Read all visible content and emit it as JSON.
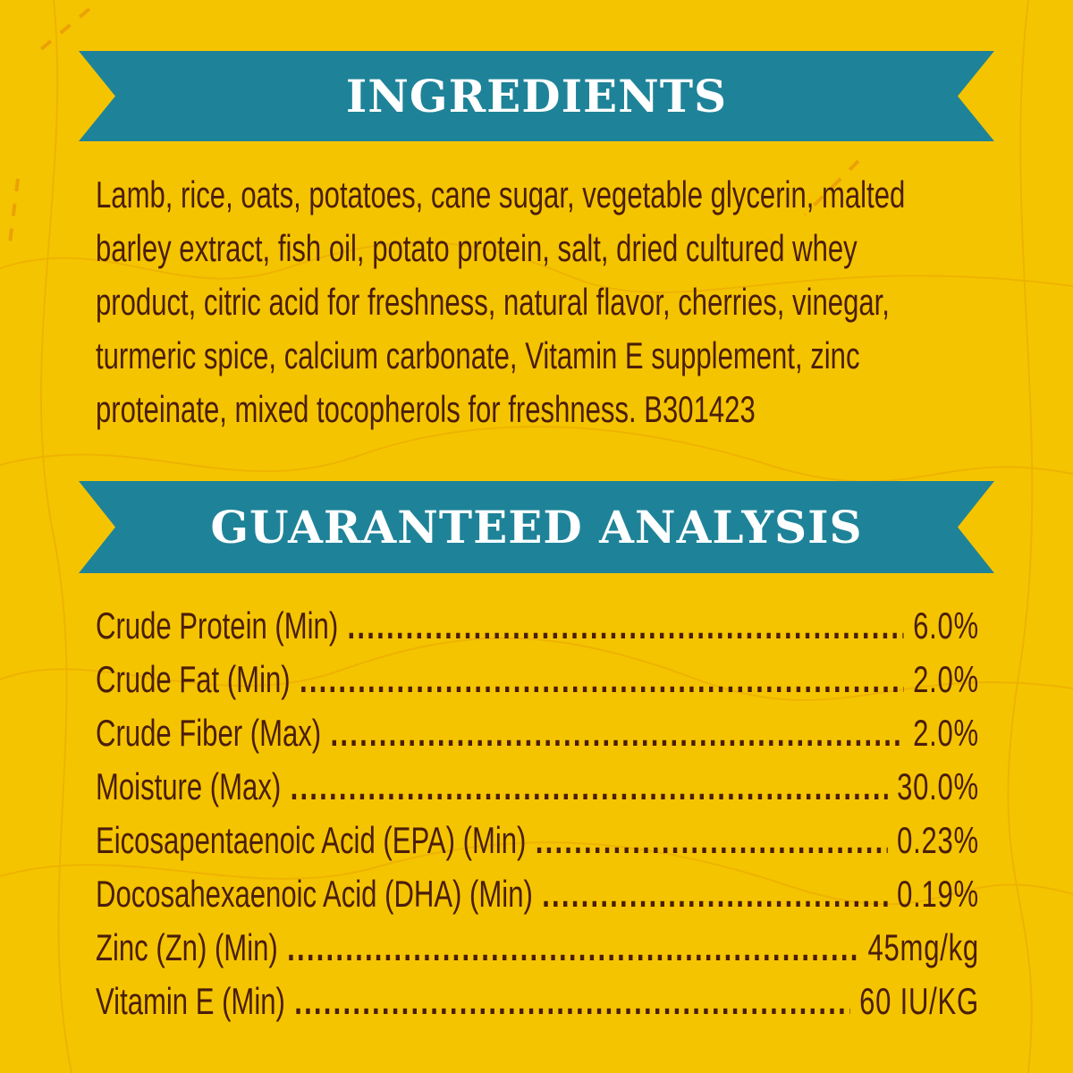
{
  "colors": {
    "background": "#f5c400",
    "banner": "#1e8398",
    "text": "#4a1e0a"
  },
  "ingredients": {
    "title": "INGREDIENTS",
    "lines": [
      "Lamb, rice, oats, potatoes, cane sugar, vegetable glycerin, malted",
      "barley extract, fish oil, potato protein, salt, dried cultured whey",
      "product, citric acid for freshness, natural flavor, cherries, vinegar,",
      "turmeric spice, calcium carbonate, Vitamin E supplement, zinc",
      "proteinate, mixed tocopherols for freshness.  B301423"
    ]
  },
  "analysis": {
    "title": "GUARANTEED ANALYSIS",
    "rows": [
      {
        "label": "Crude Protein (Min)",
        "value": "6.0%"
      },
      {
        "label": "Crude Fat (Min)",
        "value": "2.0%"
      },
      {
        "label": "Crude Fiber (Max)",
        "value": "2.0%"
      },
      {
        "label": "Moisture (Max)",
        "value": "30.0%"
      },
      {
        "label": "Eicosapentaenoic Acid (EPA) (Min)",
        "value": "0.23%"
      },
      {
        "label": "Docosahexaenoic Acid (DHA) (Min)",
        "value": "0.19%"
      },
      {
        "label": "Zinc (Zn) (Min)",
        "value": "45mg/kg"
      },
      {
        "label": "Vitamin E (Min)",
        "value": "60 IU/KG"
      }
    ]
  }
}
